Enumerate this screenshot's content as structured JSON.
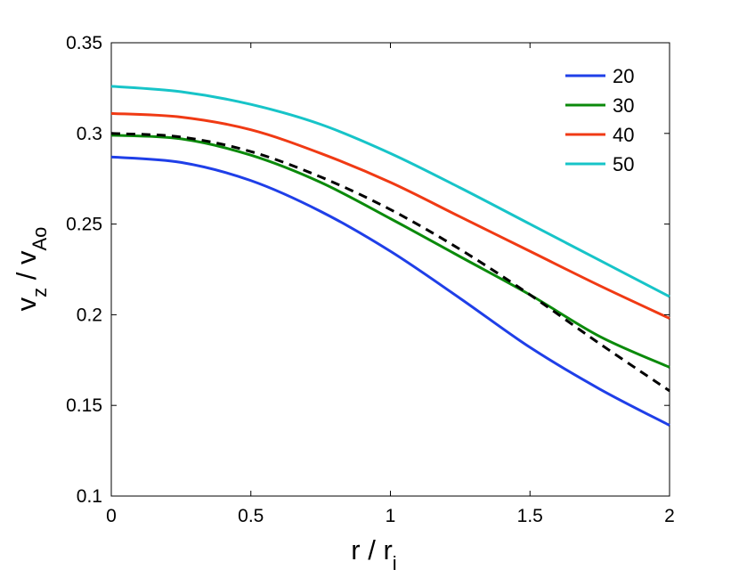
{
  "chart_data": {
    "type": "line",
    "xlabel": {
      "main": "r / r",
      "sub": "i"
    },
    "ylabel": {
      "main": "v",
      "sub1": "z",
      "mid": " / v",
      "sub2": "Ao"
    },
    "xlim": [
      0,
      2
    ],
    "ylim": [
      0.1,
      0.35
    ],
    "xticks": [
      0,
      0.5,
      1,
      1.5,
      2
    ],
    "xtick_labels": [
      "0",
      "0.5",
      "1",
      "1.5",
      "2"
    ],
    "yticks": [
      0.1,
      0.15,
      0.2,
      0.25,
      0.3,
      0.35
    ],
    "ytick_labels": [
      "0.1",
      "0.15",
      "0.2",
      "0.25",
      "0.3",
      "0.35"
    ],
    "grid": false,
    "legend_position": "top-right",
    "x": [
      0,
      0.25,
      0.5,
      0.75,
      1.0,
      1.25,
      1.5,
      1.75,
      2.0
    ],
    "series": [
      {
        "name": "20",
        "color": "#1f3fe8",
        "dash": false,
        "values": [
          0.287,
          0.284,
          0.274,
          0.257,
          0.235,
          0.209,
          0.182,
          0.159,
          0.139
        ]
      },
      {
        "name": "30",
        "color": "#0b8a0b",
        "dash": false,
        "values": [
          0.299,
          0.297,
          0.288,
          0.273,
          0.253,
          0.232,
          0.211,
          0.188,
          0.171
        ]
      },
      {
        "name": "40",
        "color": "#f03a14",
        "dash": false,
        "values": [
          0.311,
          0.309,
          0.302,
          0.289,
          0.273,
          0.254,
          0.235,
          0.216,
          0.198
        ]
      },
      {
        "name": "50",
        "color": "#17c4c8",
        "dash": false,
        "values": [
          0.326,
          0.323,
          0.316,
          0.305,
          0.289,
          0.27,
          0.25,
          0.23,
          0.21
        ]
      },
      {
        "name": "",
        "color": "#000000",
        "dash": true,
        "values": [
          0.3,
          0.298,
          0.29,
          0.276,
          0.258,
          0.236,
          0.211,
          0.184,
          0.158
        ]
      }
    ]
  }
}
